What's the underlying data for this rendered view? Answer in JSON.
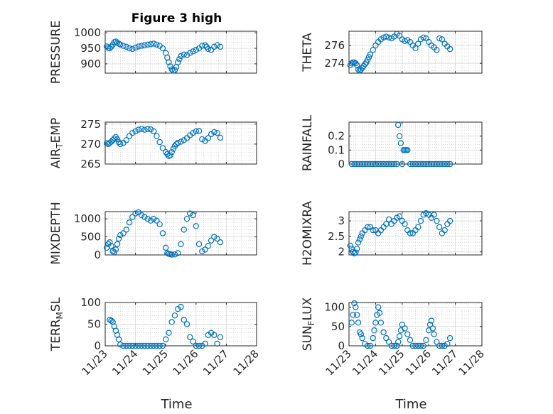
{
  "chart_data": [
    {
      "type": "scatter",
      "title": "Figure 3 high",
      "ylabel": "PRESSURE",
      "xlabel": "",
      "ylim": [
        870,
        1005
      ],
      "yticks": [
        900,
        950,
        1000
      ],
      "xlim": [
        0,
        5
      ],
      "xtick_labels_shown": false,
      "x": [
        0.05,
        0.1,
        0.15,
        0.2,
        0.25,
        0.3,
        0.35,
        0.4,
        0.45,
        0.5,
        0.6,
        0.7,
        0.8,
        0.9,
        1.0,
        1.1,
        1.2,
        1.3,
        1.4,
        1.5,
        1.6,
        1.7,
        1.8,
        1.9,
        2.0,
        2.05,
        2.1,
        2.15,
        2.2,
        2.25,
        2.3,
        2.35,
        2.4,
        2.45,
        2.5,
        2.6,
        2.7,
        2.8,
        2.9,
        3.0,
        3.1,
        3.2,
        3.3,
        3.35,
        3.4,
        3.5,
        3.6,
        3.7,
        3.8
      ],
      "values": [
        956,
        952,
        950,
        955,
        962,
        970,
        972,
        968,
        965,
        962,
        958,
        955,
        950,
        948,
        952,
        956,
        958,
        960,
        962,
        963,
        965,
        962,
        958,
        950,
        935,
        920,
        905,
        892,
        882,
        878,
        880,
        890,
        905,
        915,
        925,
        930,
        928,
        935,
        940,
        945,
        950,
        958,
        960,
        955,
        948,
        945,
        955,
        960,
        955
      ]
    },
    {
      "type": "scatter",
      "title": "",
      "ylabel": "THETA",
      "xlabel": "",
      "ylim": [
        272.9,
        277.6
      ],
      "yticks": [
        274,
        276
      ],
      "xlim": [
        0,
        5
      ],
      "xtick_labels_shown": false,
      "x": [
        0.05,
        0.1,
        0.15,
        0.2,
        0.25,
        0.3,
        0.35,
        0.4,
        0.45,
        0.5,
        0.55,
        0.6,
        0.65,
        0.7,
        0.75,
        0.8,
        0.9,
        1.0,
        1.1,
        1.2,
        1.3,
        1.4,
        1.5,
        1.6,
        1.7,
        1.8,
        1.9,
        2.0,
        2.1,
        2.2,
        2.3,
        2.4,
        2.5,
        2.6,
        2.7,
        2.8,
        2.9,
        3.0,
        3.1,
        3.2,
        3.3,
        3.4,
        3.5,
        3.6,
        3.7,
        3.8
      ],
      "values": [
        273.8,
        274.0,
        274.1,
        274.1,
        274.0,
        273.8,
        273.3,
        273.2,
        273.3,
        273.5,
        273.7,
        273.9,
        274.1,
        274.4,
        274.7,
        275.0,
        275.5,
        276.0,
        276.4,
        276.7,
        276.9,
        277.0,
        276.9,
        276.8,
        277.0,
        277.3,
        277.1,
        276.7,
        276.5,
        276.6,
        276.4,
        276.0,
        275.7,
        276.2,
        276.7,
        276.9,
        276.8,
        276.4,
        276.0,
        275.8,
        275.5,
        276.8,
        276.7,
        276.2,
        275.9,
        275.6
      ]
    },
    {
      "type": "scatter",
      "title": "",
      "ylabel": "AIR_TEMP",
      "xlabel": "",
      "ylim": [
        265,
        275.5
      ],
      "yticks": [
        265,
        270,
        275
      ],
      "xlim": [
        0,
        5
      ],
      "xtick_labels_shown": false,
      "x": [
        0.05,
        0.1,
        0.15,
        0.2,
        0.25,
        0.3,
        0.35,
        0.4,
        0.45,
        0.5,
        0.6,
        0.7,
        0.8,
        0.9,
        1.0,
        1.1,
        1.2,
        1.3,
        1.4,
        1.5,
        1.6,
        1.7,
        1.8,
        1.9,
        2.0,
        2.05,
        2.1,
        2.15,
        2.2,
        2.25,
        2.3,
        2.35,
        2.4,
        2.5,
        2.6,
        2.7,
        2.8,
        2.9,
        3.0,
        3.1,
        3.2,
        3.3,
        3.4,
        3.5,
        3.6,
        3.7,
        3.8
      ],
      "values": [
        270.2,
        270.0,
        270.3,
        270.6,
        271.0,
        271.4,
        271.8,
        271.2,
        270.5,
        270.0,
        270.3,
        271.0,
        272.0,
        272.8,
        273.2,
        273.6,
        273.8,
        273.6,
        273.8,
        273.7,
        273.2,
        272.0,
        270.5,
        269.0,
        268.0,
        267.5,
        267.0,
        267.2,
        268.0,
        268.8,
        269.5,
        270.0,
        270.3,
        270.6,
        271.0,
        271.5,
        272.2,
        272.8,
        273.2,
        273.3,
        271.2,
        270.8,
        271.5,
        272.5,
        273.0,
        272.8,
        271.6
      ]
    },
    {
      "type": "scatter",
      "title": "",
      "ylabel": "RAINFALL",
      "xlabel": "",
      "ylim": [
        0,
        0.3
      ],
      "yticks": [
        0,
        0.1,
        0.2
      ],
      "xlim": [
        0,
        5
      ],
      "xtick_labels_shown": false,
      "x": [
        0.1,
        0.2,
        0.3,
        0.4,
        0.5,
        0.6,
        0.7,
        0.8,
        0.9,
        1.0,
        1.1,
        1.2,
        1.3,
        1.4,
        1.5,
        1.6,
        1.7,
        1.8,
        1.85,
        1.9,
        1.95,
        2.0,
        2.05,
        2.1,
        2.15,
        2.2,
        2.3,
        2.4,
        2.5,
        2.6,
        2.7,
        2.8,
        2.9,
        3.0,
        3.1,
        3.2,
        3.3,
        3.4,
        3.5,
        3.6,
        3.7,
        3.8
      ],
      "values": [
        0,
        0,
        0,
        0,
        0,
        0,
        0,
        0,
        0,
        0,
        0,
        0,
        0,
        0,
        0,
        0,
        0,
        0,
        0.28,
        0.2,
        0.15,
        0,
        0.1,
        0.1,
        0.1,
        0.1,
        0,
        0,
        0,
        0,
        0,
        0,
        0,
        0,
        0,
        0,
        0,
        0,
        0,
        0,
        0,
        0
      ]
    },
    {
      "type": "scatter",
      "title": "",
      "ylabel": "MIXDEPTH",
      "xlabel": "",
      "ylim": [
        0,
        1200
      ],
      "yticks": [
        0,
        500,
        1000
      ],
      "xlim": [
        0,
        5
      ],
      "xtick_labels_shown": false,
      "x": [
        0.05,
        0.1,
        0.15,
        0.2,
        0.25,
        0.3,
        0.35,
        0.4,
        0.45,
        0.5,
        0.6,
        0.7,
        0.8,
        0.9,
        1.0,
        1.1,
        1.2,
        1.3,
        1.4,
        1.5,
        1.6,
        1.7,
        1.8,
        1.9,
        2.0,
        2.05,
        2.1,
        2.15,
        2.2,
        2.3,
        2.4,
        2.5,
        2.6,
        2.7,
        2.8,
        2.9,
        3.0,
        3.1,
        3.2,
        3.3,
        3.4,
        3.5,
        3.6,
        3.7,
        3.8
      ],
      "values": [
        200,
        300,
        350,
        250,
        100,
        80,
        150,
        300,
        450,
        550,
        600,
        700,
        900,
        1050,
        1150,
        1180,
        1100,
        1050,
        1000,
        950,
        1000,
        950,
        850,
        600,
        200,
        50,
        30,
        20,
        10,
        15,
        50,
        300,
        700,
        1000,
        1150,
        1100,
        800,
        300,
        100,
        150,
        250,
        400,
        500,
        450,
        350
      ]
    },
    {
      "type": "scatter",
      "title": "",
      "ylabel": "H2OMIXRA",
      "xlabel": "",
      "ylim": [
        1.9,
        3.3
      ],
      "yticks": [
        2,
        2.5,
        3
      ],
      "xlim": [
        0,
        5
      ],
      "xtick_labels_shown": false,
      "x": [
        0.05,
        0.1,
        0.15,
        0.2,
        0.25,
        0.3,
        0.35,
        0.4,
        0.45,
        0.5,
        0.6,
        0.7,
        0.8,
        0.9,
        1.0,
        1.1,
        1.2,
        1.3,
        1.4,
        1.5,
        1.6,
        1.7,
        1.8,
        1.9,
        2.0,
        2.1,
        2.2,
        2.3,
        2.4,
        2.5,
        2.6,
        2.7,
        2.8,
        2.9,
        3.0,
        3.1,
        3.2,
        3.3,
        3.4,
        3.5,
        3.6,
        3.7,
        3.8
      ],
      "values": [
        2.2,
        2.1,
        2.0,
        1.95,
        1.98,
        2.1,
        2.3,
        2.4,
        2.5,
        2.6,
        2.7,
        2.8,
        2.8,
        2.7,
        2.7,
        2.6,
        2.7,
        2.8,
        2.9,
        3.05,
        2.9,
        3.0,
        3.1,
        3.15,
        3.0,
        2.9,
        2.7,
        2.6,
        2.6,
        2.7,
        2.8,
        3.0,
        3.2,
        3.25,
        3.2,
        3.1,
        3.2,
        3.0,
        2.8,
        2.6,
        2.7,
        2.9,
        3.0
      ]
    },
    {
      "type": "scatter",
      "title": "",
      "ylabel": "TERR_MSL",
      "xlabel": "Time",
      "ylim": [
        0,
        100
      ],
      "yticks": [
        0,
        50,
        100
      ],
      "xlim": [
        0,
        5
      ],
      "xtick_labels": [
        "11/23",
        "11/24",
        "11/25",
        "11/26",
        "11/27",
        "11/28"
      ],
      "xticks": [
        0,
        1,
        2,
        3,
        4,
        5
      ],
      "x": [
        0.15,
        0.2,
        0.25,
        0.3,
        0.35,
        0.4,
        0.45,
        0.5,
        0.6,
        0.7,
        0.8,
        0.9,
        1.0,
        1.1,
        1.2,
        1.3,
        1.4,
        1.5,
        1.6,
        1.7,
        1.8,
        1.9,
        2.0,
        2.1,
        2.2,
        2.3,
        2.4,
        2.5,
        2.6,
        2.7,
        2.8,
        2.9,
        3.0,
        3.1,
        3.2,
        3.3,
        3.4,
        3.5,
        3.6,
        3.7,
        3.8
      ],
      "values": [
        60,
        58,
        55,
        45,
        35,
        25,
        15,
        3,
        0,
        0,
        0,
        0,
        0,
        0,
        0,
        0,
        0,
        0,
        0,
        0,
        0,
        0,
        15,
        30,
        55,
        70,
        85,
        90,
        60,
        50,
        20,
        10,
        0,
        0,
        0,
        5,
        25,
        30,
        25,
        5,
        20
      ]
    },
    {
      "type": "scatter",
      "title": "",
      "ylabel": "SUN_FLUX",
      "xlabel": "Time",
      "ylim": [
        0,
        112
      ],
      "yticks": [
        0,
        50,
        100
      ],
      "xlim": [
        0,
        5
      ],
      "xtick_labels": [
        "11/23",
        "11/24",
        "11/25",
        "11/26",
        "11/27",
        "11/28"
      ],
      "xticks": [
        0,
        1,
        2,
        3,
        4,
        5
      ],
      "x": [
        0.1,
        0.15,
        0.2,
        0.25,
        0.3,
        0.35,
        0.4,
        0.45,
        0.5,
        0.6,
        0.7,
        0.8,
        0.9,
        0.95,
        1.0,
        1.05,
        1.1,
        1.15,
        1.2,
        1.3,
        1.4,
        1.5,
        1.6,
        1.7,
        1.8,
        1.85,
        1.9,
        1.95,
        2.0,
        2.1,
        2.2,
        2.3,
        2.4,
        2.5,
        2.6,
        2.7,
        2.8,
        2.9,
        3.0,
        3.05,
        3.1,
        3.15,
        3.2,
        3.3,
        3.4,
        3.5,
        3.6,
        3.7,
        3.8
      ],
      "values": [
        60,
        80,
        110,
        100,
        80,
        60,
        35,
        30,
        20,
        5,
        0,
        0,
        20,
        40,
        60,
        80,
        100,
        85,
        60,
        35,
        20,
        10,
        0,
        0,
        0,
        10,
        25,
        40,
        55,
        45,
        30,
        15,
        0,
        0,
        0,
        0,
        0,
        15,
        40,
        55,
        65,
        45,
        30,
        10,
        0,
        0,
        0,
        5,
        20
      ]
    }
  ],
  "colors": {
    "marker": "#0072BD",
    "axis": "#262626",
    "background": "#ffffff"
  }
}
